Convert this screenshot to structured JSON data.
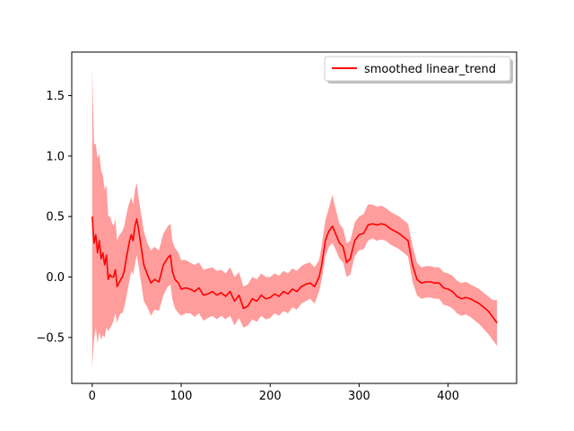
{
  "chart_data": {
    "type": "line",
    "title": "",
    "xlabel": "",
    "ylabel": "",
    "xlim": [
      -23,
      477
    ],
    "ylim": [
      -0.88,
      1.86
    ],
    "x_ticks": [
      0,
      100,
      200,
      300,
      400
    ],
    "x_tick_labels": [
      "0",
      "100",
      "200",
      "300",
      "400"
    ],
    "y_ticks": [
      -0.5,
      0.0,
      0.5,
      1.0,
      1.5
    ],
    "y_tick_labels": [
      "−0.5",
      "0.0",
      "0.5",
      "1.0",
      "1.5"
    ],
    "grid": false,
    "legend": {
      "position": "top-right",
      "entries": [
        "smoothed linear_trend"
      ]
    },
    "series": [
      {
        "name": "smoothed linear_trend",
        "color": "#ff0000",
        "band_color": "#ff9c9c",
        "x": [
          0,
          2,
          4,
          6,
          8,
          10,
          12,
          14,
          16,
          18,
          20,
          22,
          24,
          26,
          28,
          30,
          32,
          34,
          36,
          38,
          40,
          42,
          44,
          46,
          48,
          50,
          52,
          55,
          58,
          62,
          66,
          70,
          75,
          80,
          85,
          88,
          90,
          93,
          97,
          100,
          105,
          110,
          115,
          120,
          125,
          130,
          135,
          140,
          145,
          150,
          155,
          160,
          165,
          170,
          175,
          180,
          185,
          190,
          195,
          200,
          205,
          210,
          215,
          220,
          225,
          230,
          235,
          240,
          245,
          250,
          255,
          258,
          262,
          266,
          270,
          274,
          278,
          282,
          286,
          290,
          295,
          300,
          305,
          310,
          315,
          320,
          325,
          330,
          335,
          340,
          345,
          350,
          355,
          360,
          365,
          370,
          375,
          380,
          385,
          390,
          395,
          400,
          405,
          410,
          415,
          420,
          425,
          430,
          435,
          440,
          445,
          450,
          455
        ],
        "y": [
          0.5,
          0.28,
          0.35,
          0.2,
          0.3,
          0.15,
          0.2,
          0.1,
          0.18,
          -0.02,
          0.02,
          0.0,
          0.0,
          0.06,
          -0.08,
          -0.05,
          -0.02,
          0.0,
          0.05,
          0.14,
          0.22,
          0.3,
          0.35,
          0.3,
          0.42,
          0.48,
          0.4,
          0.25,
          0.1,
          0.02,
          -0.05,
          -0.02,
          -0.04,
          0.1,
          0.16,
          0.18,
          0.05,
          -0.02,
          -0.05,
          -0.1,
          -0.09,
          -0.1,
          -0.12,
          -0.09,
          -0.15,
          -0.14,
          -0.12,
          -0.15,
          -0.13,
          -0.16,
          -0.12,
          -0.2,
          -0.15,
          -0.26,
          -0.24,
          -0.18,
          -0.2,
          -0.15,
          -0.18,
          -0.17,
          -0.14,
          -0.16,
          -0.12,
          -0.14,
          -0.1,
          -0.12,
          -0.08,
          -0.06,
          -0.05,
          -0.08,
          0.0,
          0.1,
          0.3,
          0.38,
          0.42,
          0.35,
          0.28,
          0.25,
          0.12,
          0.15,
          0.3,
          0.35,
          0.36,
          0.43,
          0.44,
          0.43,
          0.44,
          0.43,
          0.4,
          0.38,
          0.36,
          0.33,
          0.3,
          0.1,
          -0.02,
          -0.05,
          -0.04,
          -0.04,
          -0.05,
          -0.05,
          -0.09,
          -0.1,
          -0.12,
          -0.16,
          -0.18,
          -0.17,
          -0.18,
          -0.2,
          -0.22,
          -0.25,
          -0.28,
          -0.33,
          -0.38
        ],
        "y_low": [
          -0.75,
          -0.52,
          -0.42,
          -0.55,
          -0.45,
          -0.52,
          -0.48,
          -0.5,
          -0.42,
          -0.45,
          -0.42,
          -0.4,
          -0.36,
          -0.3,
          -0.38,
          -0.33,
          -0.3,
          -0.3,
          -0.25,
          -0.18,
          -0.1,
          -0.02,
          0.05,
          0.02,
          0.1,
          0.18,
          0.1,
          -0.05,
          -0.2,
          -0.25,
          -0.32,
          -0.27,
          -0.28,
          -0.15,
          -0.08,
          -0.06,
          -0.18,
          -0.26,
          -0.3,
          -0.32,
          -0.3,
          -0.3,
          -0.33,
          -0.3,
          -0.36,
          -0.34,
          -0.32,
          -0.35,
          -0.32,
          -0.35,
          -0.32,
          -0.4,
          -0.34,
          -0.42,
          -0.4,
          -0.35,
          -0.37,
          -0.32,
          -0.35,
          -0.34,
          -0.3,
          -0.32,
          -0.28,
          -0.3,
          -0.25,
          -0.27,
          -0.22,
          -0.2,
          -0.18,
          -0.22,
          -0.12,
          -0.02,
          0.17,
          0.25,
          0.28,
          0.22,
          0.15,
          0.12,
          0.0,
          0.02,
          0.17,
          0.22,
          0.23,
          0.3,
          0.32,
          0.3,
          0.31,
          0.3,
          0.27,
          0.25,
          0.23,
          0.2,
          0.17,
          -0.04,
          -0.15,
          -0.18,
          -0.17,
          -0.17,
          -0.18,
          -0.18,
          -0.23,
          -0.24,
          -0.26,
          -0.3,
          -0.32,
          -0.31,
          -0.33,
          -0.36,
          -0.39,
          -0.43,
          -0.47,
          -0.52,
          -0.57
        ],
        "y_high": [
          1.72,
          1.1,
          1.1,
          0.98,
          1.02,
          0.88,
          0.84,
          0.72,
          0.76,
          0.5,
          0.5,
          0.45,
          0.42,
          0.48,
          0.3,
          0.34,
          0.36,
          0.38,
          0.42,
          0.5,
          0.57,
          0.62,
          0.66,
          0.6,
          0.72,
          0.78,
          0.66,
          0.52,
          0.38,
          0.28,
          0.22,
          0.25,
          0.22,
          0.36,
          0.42,
          0.44,
          0.3,
          0.24,
          0.2,
          0.14,
          0.14,
          0.12,
          0.1,
          0.12,
          0.06,
          0.07,
          0.08,
          0.05,
          0.06,
          0.03,
          0.08,
          0.0,
          0.04,
          -0.08,
          -0.06,
          0.0,
          -0.02,
          0.03,
          0.0,
          0.0,
          0.03,
          0.01,
          0.05,
          0.03,
          0.07,
          0.05,
          0.09,
          0.11,
          0.12,
          0.08,
          0.14,
          0.26,
          0.47,
          0.57,
          0.68,
          0.55,
          0.44,
          0.4,
          0.28,
          0.3,
          0.45,
          0.5,
          0.52,
          0.6,
          0.6,
          0.58,
          0.59,
          0.57,
          0.54,
          0.52,
          0.5,
          0.47,
          0.44,
          0.26,
          0.12,
          0.08,
          0.09,
          0.09,
          0.08,
          0.08,
          0.04,
          0.03,
          0.01,
          -0.03,
          -0.05,
          -0.04,
          -0.06,
          -0.08,
          -0.1,
          -0.13,
          -0.16,
          -0.19,
          -0.19
        ]
      }
    ]
  }
}
